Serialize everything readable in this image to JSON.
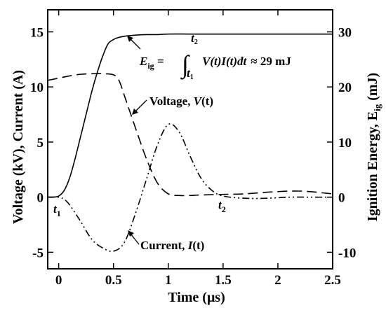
{
  "chart_data": {
    "type": "line",
    "xlabel": "Time (μs)",
    "ylabel_left": "Voltage (kV), Current (A)",
    "ylabel_right_main": "Ignition Energy, E",
    "ylabel_right_sub": "ig",
    "ylabel_right_unit": " (mJ)",
    "xlim": [
      -0.1,
      2.5
    ],
    "ylim_left": [
      -6.5,
      17
    ],
    "ylim_right": [
      -13,
      34
    ],
    "x_ticks": [
      0,
      0.5,
      1,
      1.5,
      2,
      2.5
    ],
    "x_tick_labels": [
      "0",
      "0.5",
      "1",
      "1.5",
      "2",
      "2.5"
    ],
    "y_left_ticks": [
      -5,
      0,
      5,
      10,
      15
    ],
    "y_left_tick_labels": [
      "-5",
      "0",
      "5",
      "10",
      "15"
    ],
    "y_right_ticks": [
      -10,
      0,
      10,
      20,
      30
    ],
    "y_right_tick_labels": [
      "-10",
      "0",
      "10",
      "20",
      "30"
    ],
    "grid": false,
    "series": [
      {
        "key": "energy",
        "name": "E_ig",
        "axis": "right",
        "style": "solid",
        "x": [
          -0.1,
          -0.05,
          0,
          0.05,
          0.1,
          0.15,
          0.2,
          0.25,
          0.3,
          0.35,
          0.4,
          0.45,
          0.5,
          0.55,
          0.6,
          0.7,
          0.8,
          0.9,
          1.0,
          1.2,
          1.5,
          2.0,
          2.5
        ],
        "y": [
          0,
          0,
          0.2,
          1.2,
          3.5,
          7,
          11,
          15,
          19,
          22.5,
          25.5,
          27.8,
          28.6,
          29.0,
          29.2,
          29.4,
          29.5,
          29.5,
          29.6,
          29.6,
          29.6,
          29.6,
          29.6
        ]
      },
      {
        "key": "voltage",
        "name": "Voltage, V(t)",
        "axis": "left",
        "style": "dashed",
        "x": [
          -0.1,
          0,
          0.1,
          0.2,
          0.3,
          0.4,
          0.5,
          0.55,
          0.6,
          0.7,
          0.8,
          0.9,
          1.0,
          1.1,
          1.2,
          1.3,
          1.5,
          1.7,
          1.9,
          2.0,
          2.1,
          2.2,
          2.3,
          2.4,
          2.5
        ],
        "y": [
          10.6,
          10.8,
          11.0,
          11.15,
          11.2,
          11.2,
          11.1,
          10.6,
          9.2,
          6.3,
          3.5,
          1.3,
          0.3,
          0.15,
          0.15,
          0.2,
          0.25,
          0.3,
          0.45,
          0.5,
          0.55,
          0.55,
          0.5,
          0.4,
          0.3
        ]
      },
      {
        "key": "current",
        "name": "Current, I(t)",
        "axis": "left",
        "style": "dash-dot",
        "x": [
          -0.1,
          0,
          0.05,
          0.1,
          0.2,
          0.3,
          0.4,
          0.5,
          0.6,
          0.7,
          0.8,
          0.9,
          1.0,
          1.1,
          1.2,
          1.3,
          1.4,
          1.5,
          1.7,
          1.9,
          2.1,
          2.3,
          2.5
        ],
        "y": [
          0,
          0,
          -0.2,
          -0.7,
          -2.2,
          -3.8,
          -4.6,
          -4.9,
          -4.1,
          -1.5,
          1.6,
          4.7,
          6.6,
          5.9,
          3.7,
          1.7,
          0.6,
          0.1,
          -0.1,
          -0.1,
          0,
          0,
          0
        ]
      }
    ],
    "annotations": {
      "t1": {
        "main": "t",
        "sub": "1"
      },
      "t2": {
        "main": "t",
        "sub": "2"
      },
      "energy_eq": {
        "lhs_main": "E",
        "lhs_sub": "ig",
        "eq": " = ",
        "int_sym": "∫",
        "upper": "t",
        "upper_sub": "2",
        "lower": "t",
        "lower_sub": "1",
        "integrand": "V(t)I(t)dt",
        "approx": "≈ 29 mJ"
      },
      "voltage_label": {
        "plain": "Voltage, ",
        "ital": "V",
        "tail": "(t)"
      },
      "current_label": {
        "plain": "Current, ",
        "ital": "I",
        "tail": "(t)"
      }
    }
  }
}
